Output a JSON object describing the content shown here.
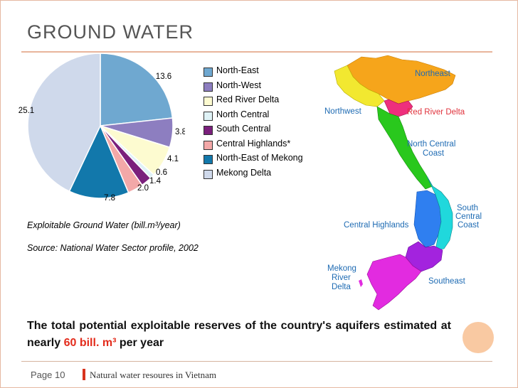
{
  "slide": {
    "title": "GROUND WATER",
    "caption_unit": "Exploitable Ground Water (bill.m³/year)",
    "caption_source": "Source: National Water Sector profile, 2002",
    "body_text_pre": "The total potential exploitable reserves of the country's aquifers estimated at nearly ",
    "body_text_highlight": "60 bill. m³",
    "body_text_post": " per year",
    "page_label": "Page 10",
    "footer_text": "Natural water resoures in Vietnam"
  },
  "colors": {
    "title": "#555555",
    "accent_line": "#e8b59c",
    "highlight": "#e32c1c",
    "footer_bar": "#d8341e",
    "circle": "#f9c9a2"
  },
  "chart_data": {
    "type": "pie",
    "slices": [
      {
        "name": "North-East",
        "value": 13.6,
        "label": "13.6",
        "color": "#6fa8d0"
      },
      {
        "name": "North-West",
        "value": 3.8,
        "label": "3.8",
        "color": "#8d7ec0"
      },
      {
        "name": "Red River Delta",
        "value": 4.1,
        "label": "4.1",
        "color": "#fdfbd0"
      },
      {
        "name": "North Central",
        "value": 0.6,
        "label": "0.6",
        "color": "#dff2f6"
      },
      {
        "name": "South Central",
        "value": 1.4,
        "label": "1.4",
        "color": "#7a1f7c"
      },
      {
        "name": "Central Highlands*",
        "value": 2.0,
        "label": "2.0",
        "color": "#f3a8a8"
      },
      {
        "name": "North-East of Mekong",
        "value": 7.8,
        "label": "7.8",
        "color": "#1278ab"
      },
      {
        "name": "Mekong Delta",
        "value": 25.1,
        "label": "25.1",
        "color": "#cfd9eb"
      }
    ],
    "legend_position": "right"
  },
  "map": {
    "labels": {
      "northeast": "Northeast",
      "northwest": "Northwest",
      "red_river_delta": "Red River Delta",
      "north_central": "North Central",
      "north_central_2": "Coast",
      "south_central": "South",
      "south_central_2": "Central",
      "south_central_3": "Coast",
      "central_highlands": "Central Highlands",
      "mekong_1": "Mekong",
      "mekong_2": "River",
      "mekong_3": "Delta",
      "southeast": "Southeast"
    },
    "region_colors": {
      "northeast": "#f6a51b",
      "northwest": "#f2e830",
      "red_river_delta": "#ee2f7d",
      "north_central": "#29c81d",
      "south_central": "#20d8dc",
      "central_highlands": "#2f7ff0",
      "southeast": "#a323de",
      "mekong": "#e22be0"
    },
    "label_color": "#1e6bb3",
    "red_label_color": "#e0323c"
  }
}
